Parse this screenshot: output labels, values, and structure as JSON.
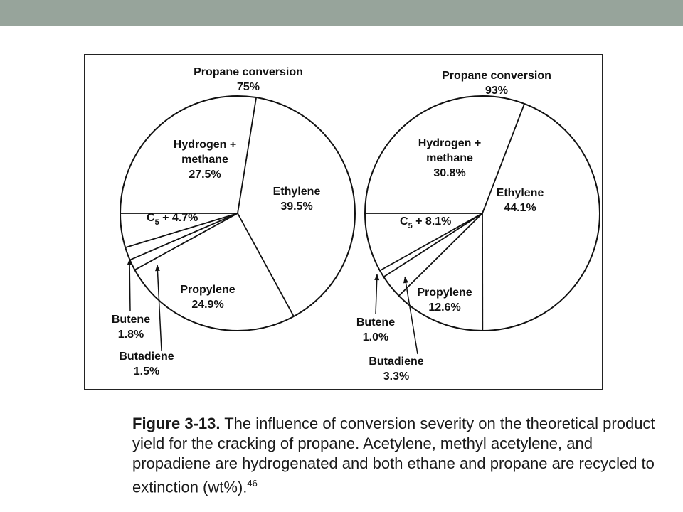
{
  "chart_data": [
    {
      "type": "pie",
      "title": [
        "Propane conversion",
        "75%"
      ],
      "slices": [
        {
          "label": [
            "Ethylene",
            "39.5%"
          ],
          "value": 39.5
        },
        {
          "label": [
            "Propylene",
            "24.9%"
          ],
          "value": 24.9
        },
        {
          "label": [
            "Butadiene",
            "1.5%"
          ],
          "value": 1.5
        },
        {
          "label": [
            "Butene",
            "1.8%"
          ],
          "value": 1.8
        },
        {
          "label": [
            "C5 + 4.7%"
          ],
          "value": 4.7
        },
        {
          "label": [
            "Hydrogen +",
            "methane",
            "27.5%"
          ],
          "value": 27.5
        }
      ]
    },
    {
      "type": "pie",
      "title": [
        "Propane conversion",
        "93%"
      ],
      "slices": [
        {
          "label": [
            "Ethylene",
            "44.1%"
          ],
          "value": 44.1
        },
        {
          "label": [
            "Propylene",
            "12.6%"
          ],
          "value": 12.6
        },
        {
          "label": [
            "Butadiene",
            "3.3%"
          ],
          "value": 3.3
        },
        {
          "label": [
            "Butene",
            "1.0%"
          ],
          "value": 1.0
        },
        {
          "label": [
            "C5 + 8.1%"
          ],
          "value": 8.1
        },
        {
          "label": [
            "Hydrogen +",
            "methane",
            "30.8%"
          ],
          "value": 30.8
        }
      ]
    }
  ],
  "caption": {
    "label": "Figure 3-13.",
    "text": " The influence of conversion severity on the theoretical product yield for the cracking of propane. Acetylene, methyl acetylene, and propadiene are hydrogenated and both ethane and propane are recycled to extinction (wt%).",
    "ref": "46"
  }
}
